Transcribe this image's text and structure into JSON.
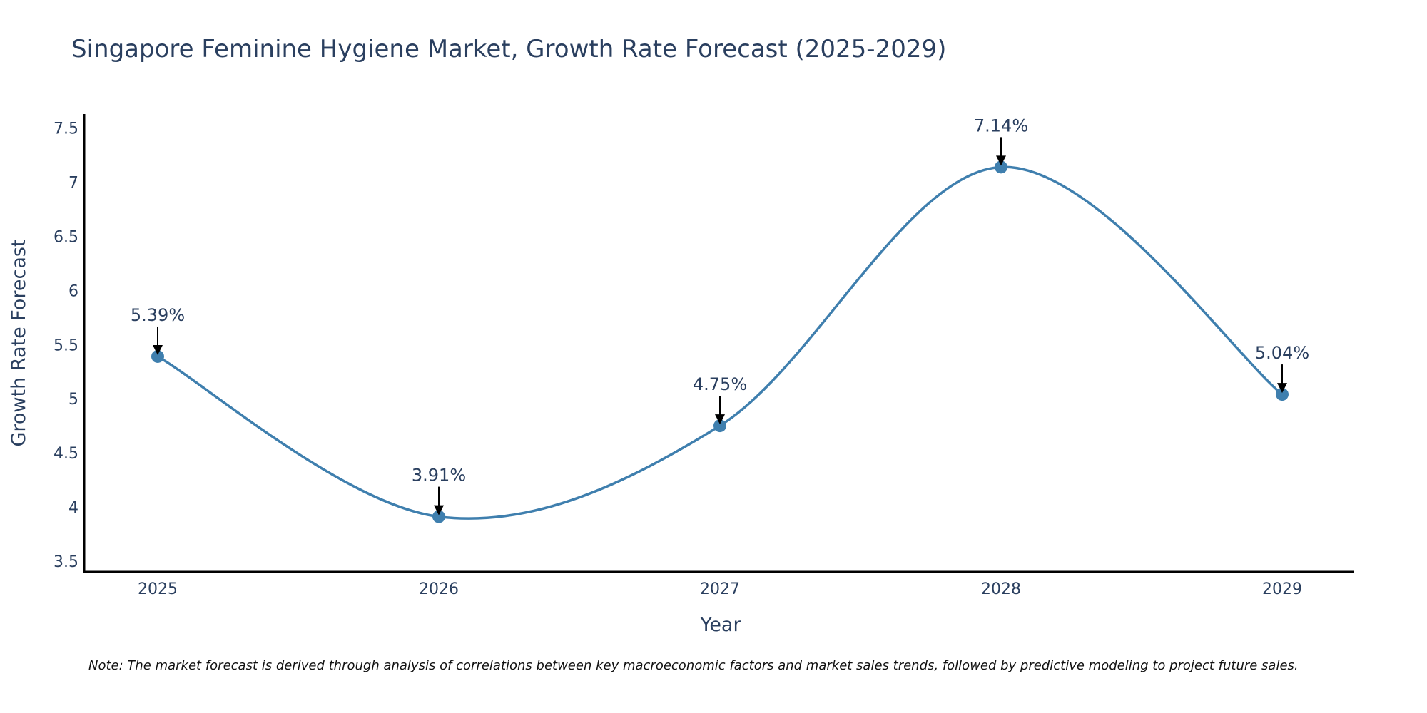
{
  "chart_data": {
    "type": "line",
    "title": "Singapore Feminine Hygiene Market, Growth Rate Forecast (2025-2029)",
    "xlabel": "Year",
    "ylabel": "Growth Rate Forecast",
    "categories": [
      "2025",
      "2026",
      "2027",
      "2028",
      "2029"
    ],
    "values": [
      5.39,
      3.91,
      4.75,
      7.14,
      5.04
    ],
    "data_labels": [
      "5.39%",
      "3.91%",
      "4.75%",
      "7.14%",
      "5.04%"
    ],
    "ylim": [
      3.4,
      7.63
    ],
    "yticks": [
      3.5,
      4,
      4.5,
      5,
      5.5,
      6,
      6.5,
      7,
      7.5
    ],
    "ytick_labels": [
      "3.5",
      "4",
      "4.5",
      "5",
      "5.5",
      "6",
      "6.5",
      "7",
      "7.5"
    ],
    "grid": false,
    "line_color": "#3f7fae",
    "marker_color": "#3f7fae",
    "arrow_color": "#000000",
    "curve": "spline"
  },
  "note": "Note: The market forecast is derived through analysis of correlations between key macroeconomic factors and market sales trends, followed by predictive modeling to project future sales."
}
